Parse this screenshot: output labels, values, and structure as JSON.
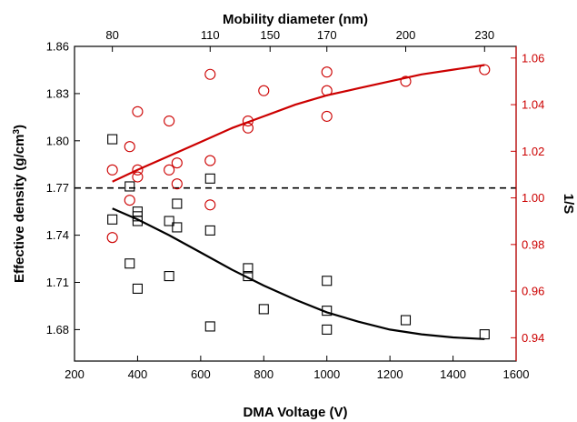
{
  "chart_data": {
    "type": "scatter",
    "xlabel": "DMA Voltage (V)",
    "ylabel_left": "Effective density (g/cm",
    "ylabel_left_sup": "3",
    "ylabel_left_close": ")",
    "ylabel_right": "1/S",
    "xlabel_top": "Mobility diameter (nm)",
    "xlim": [
      200,
      1600
    ],
    "ylim_left": [
      1.66,
      1.86
    ],
    "ylim_right": [
      0.93,
      1.065
    ],
    "x_ticks": [
      200,
      400,
      600,
      800,
      1000,
      1200,
      1400,
      1600
    ],
    "x_tick_labels": [
      "200",
      "400",
      "600",
      "800",
      "1000",
      "1200",
      "1400",
      "1600"
    ],
    "y_left_ticks": [
      1.68,
      1.71,
      1.74,
      1.77,
      1.8,
      1.83,
      1.86
    ],
    "y_left_tick_labels": [
      "1.68",
      "1.71",
      "1.74",
      "1.77",
      "1.80",
      "1.83",
      "1.86"
    ],
    "y_right_ticks": [
      0.94,
      0.96,
      0.98,
      1.0,
      1.02,
      1.04,
      1.06
    ],
    "y_right_tick_labels": [
      "0.94",
      "0.96",
      "0.98",
      "1.00",
      "1.02",
      "1.04",
      "1.06"
    ],
    "top_ticks": [
      {
        "voltage": 320,
        "label": "80"
      },
      {
        "voltage": 630,
        "label": "110"
      },
      {
        "voltage": 820,
        "label": "150"
      },
      {
        "voltage": 1000,
        "label": "170"
      },
      {
        "voltage": 1250,
        "label": "200"
      },
      {
        "voltage": 1500,
        "label": "230"
      }
    ],
    "top_tick_labels": [
      "80",
      "110",
      "150",
      "170",
      "200",
      "230"
    ],
    "reference_line": {
      "y_left": 1.77,
      "style": "dashed"
    },
    "series": [
      {
        "axis": "left",
        "marker": "square",
        "color": "#000000",
        "points": [
          [
            320,
            1.801
          ],
          [
            320,
            1.75
          ],
          [
            375,
            1.771
          ],
          [
            375,
            1.722
          ],
          [
            400,
            1.755
          ],
          [
            400,
            1.752
          ],
          [
            400,
            1.749
          ],
          [
            400,
            1.706
          ],
          [
            500,
            1.749
          ],
          [
            500,
            1.714
          ],
          [
            525,
            1.76
          ],
          [
            525,
            1.745
          ],
          [
            630,
            1.776
          ],
          [
            630,
            1.743
          ],
          [
            630,
            1.682
          ],
          [
            750,
            1.719
          ],
          [
            750,
            1.714
          ],
          [
            800,
            1.693
          ],
          [
            1000,
            1.711
          ],
          [
            1000,
            1.692
          ],
          [
            1000,
            1.68
          ],
          [
            1250,
            1.686
          ],
          [
            1500,
            1.677
          ]
        ],
        "fit": [
          [
            320,
            1.757
          ],
          [
            400,
            1.75
          ],
          [
            500,
            1.74
          ],
          [
            600,
            1.729
          ],
          [
            700,
            1.718
          ],
          [
            800,
            1.708
          ],
          [
            900,
            1.699
          ],
          [
            1000,
            1.691
          ],
          [
            1100,
            1.685
          ],
          [
            1200,
            1.68
          ],
          [
            1300,
            1.677
          ],
          [
            1400,
            1.675
          ],
          [
            1500,
            1.674
          ]
        ]
      },
      {
        "axis": "right",
        "marker": "circle",
        "color": "#cc0000",
        "points": [
          [
            320,
            1.012
          ],
          [
            320,
            0.983
          ],
          [
            375,
            1.022
          ],
          [
            375,
            0.999
          ],
          [
            400,
            1.037
          ],
          [
            400,
            1.012
          ],
          [
            400,
            1.009
          ],
          [
            500,
            1.033
          ],
          [
            500,
            1.012
          ],
          [
            525,
            1.015
          ],
          [
            525,
            1.006
          ],
          [
            630,
            1.053
          ],
          [
            630,
            1.016
          ],
          [
            630,
            0.997
          ],
          [
            750,
            1.033
          ],
          [
            750,
            1.03
          ],
          [
            800,
            1.046
          ],
          [
            1000,
            1.054
          ],
          [
            1000,
            1.046
          ],
          [
            1000,
            1.035
          ],
          [
            1250,
            1.05
          ],
          [
            1500,
            1.055
          ]
        ],
        "fit": [
          [
            320,
            1.007
          ],
          [
            400,
            1.012
          ],
          [
            500,
            1.018
          ],
          [
            600,
            1.024
          ],
          [
            700,
            1.03
          ],
          [
            800,
            1.035
          ],
          [
            900,
            1.04
          ],
          [
            1000,
            1.044
          ],
          [
            1100,
            1.047
          ],
          [
            1200,
            1.05
          ],
          [
            1300,
            1.053
          ],
          [
            1400,
            1.055
          ],
          [
            1500,
            1.057
          ]
        ]
      }
    ]
  }
}
